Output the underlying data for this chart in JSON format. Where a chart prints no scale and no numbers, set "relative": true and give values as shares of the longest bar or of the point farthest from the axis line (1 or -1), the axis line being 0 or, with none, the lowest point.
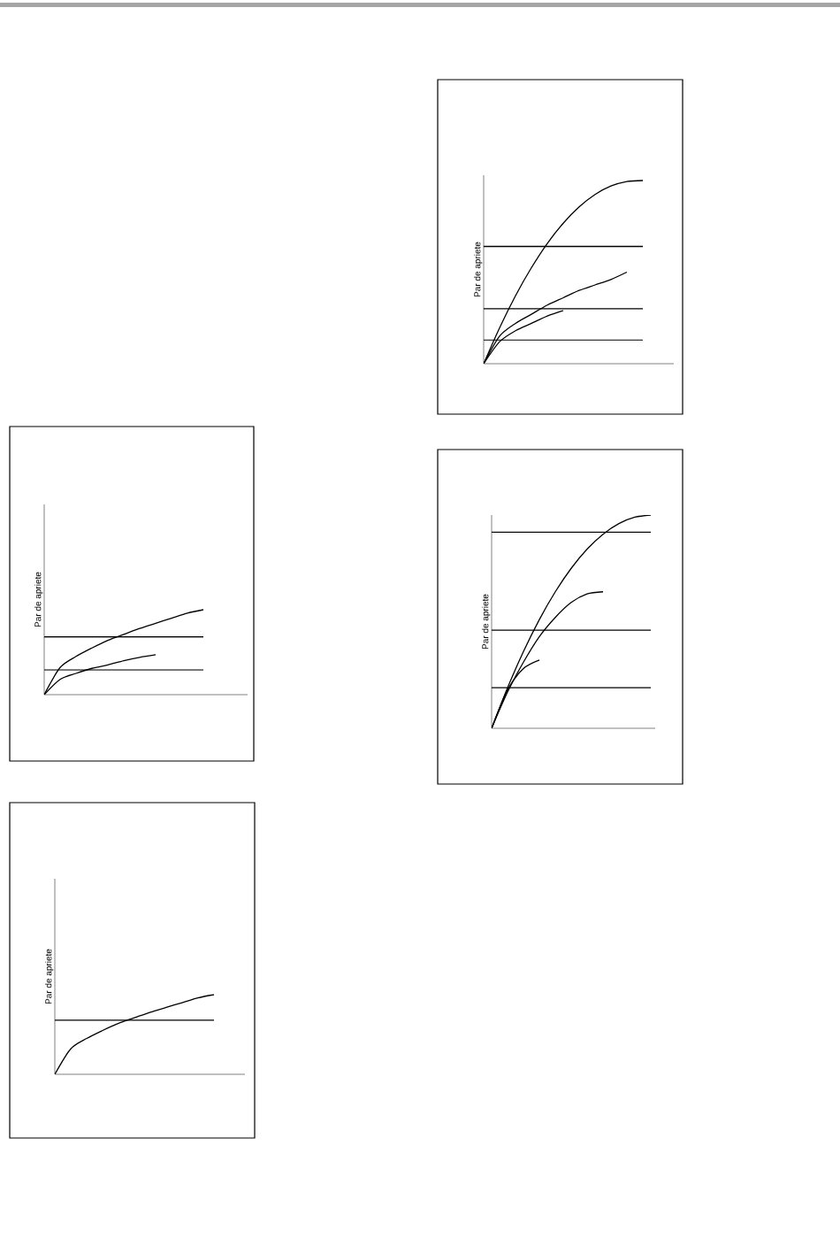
{
  "chart_data": [
    {
      "type": "line",
      "relative": true,
      "marker": "none",
      "ylabel": "Par de apriete",
      "categories": [
        null,
        null,
        null,
        null,
        null,
        null,
        null,
        null,
        null,
        null,
        null
      ],
      "series": [
        {
          "color": "#000000",
          "values": [
            0,
            0.196,
            0.371,
            0.524,
            0.657,
            0.767,
            0.856,
            0.924,
            0.97,
            0.995,
            1.0
          ]
        },
        {
          "color": "#000000",
          "values": [
            0,
            0.15,
            0.22,
            0.27,
            0.32,
            0.36,
            0.4,
            0.43,
            0.46,
            0.5,
            null
          ]
        },
        {
          "color": "#000000",
          "values": [
            0,
            0.12,
            0.18,
            0.22,
            0.26,
            0.29,
            null,
            null,
            null,
            null,
            null
          ]
        },
        {
          "color": "#000000",
          "values": [
            0.64,
            0.64,
            0.64,
            0.64,
            0.64,
            0.64,
            0.64,
            0.64,
            0.64,
            0.64,
            0.64
          ]
        },
        {
          "color": "#000000",
          "values": [
            0.3,
            0.3,
            0.3,
            0.3,
            0.3,
            0.3,
            0.3,
            0.3,
            0.3,
            0.3,
            0.3
          ]
        },
        {
          "color": "#000000",
          "values": [
            0.13,
            0.13,
            0.13,
            0.13,
            0.13,
            0.13,
            0.13,
            0.13,
            0.13,
            0.13,
            0.13
          ]
        }
      ]
    },
    {
      "type": "line",
      "relative": true,
      "marker": "none",
      "ylabel": "Par de apriete",
      "categories": [
        null,
        null,
        null,
        null,
        null,
        null,
        null,
        null,
        null,
        null,
        null
      ],
      "series": [
        {
          "color": "#000000",
          "values": [
            0,
            0.32,
            0.45,
            0.55,
            0.64,
            0.71,
            0.78,
            0.84,
            0.9,
            0.96,
            1.0
          ]
        },
        {
          "color": "#000000",
          "values": [
            0,
            0.18,
            0.25,
            0.31,
            0.35,
            0.4,
            0.44,
            0.47,
            null,
            null,
            null
          ]
        },
        {
          "color": "#000000",
          "values": [
            0.68,
            0.68,
            0.68,
            0.68,
            0.68,
            0.68,
            0.68,
            0.68,
            0.68,
            0.68,
            0.68
          ]
        },
        {
          "color": "#000000",
          "values": [
            0.29,
            0.29,
            0.29,
            0.29,
            0.29,
            0.29,
            0.29,
            0.29,
            0.29,
            0.29,
            0.29
          ]
        }
      ]
    },
    {
      "type": "line",
      "relative": true,
      "marker": "none",
      "ylabel": "Par de apriete",
      "categories": [
        null,
        null,
        null,
        null,
        null,
        null,
        null,
        null,
        null,
        null,
        null
      ],
      "series": [
        {
          "color": "#000000",
          "values": [
            0,
            0.19,
            0.36,
            0.51,
            0.64,
            0.75,
            0.84,
            0.91,
            0.96,
            0.99,
            1.0
          ]
        },
        {
          "color": "#000000",
          "values": [
            0,
            0.17,
            0.31,
            0.43,
            0.52,
            0.59,
            0.63,
            0.64,
            null,
            null,
            null
          ]
        },
        {
          "color": "#000000",
          "values": [
            0,
            0.18,
            0.28,
            0.32,
            null,
            null,
            null,
            null,
            null,
            null,
            null
          ]
        },
        {
          "color": "#000000",
          "values": [
            0.92,
            0.92,
            0.92,
            0.92,
            0.92,
            0.92,
            0.92,
            0.92,
            0.92,
            0.92,
            0.92
          ]
        },
        {
          "color": "#000000",
          "values": [
            0.46,
            0.46,
            0.46,
            0.46,
            0.46,
            0.46,
            0.46,
            0.46,
            0.46,
            0.46,
            0.46
          ]
        },
        {
          "color": "#000000",
          "values": [
            0.19,
            0.19,
            0.19,
            0.19,
            0.19,
            0.19,
            0.19,
            0.19,
            0.19,
            0.19,
            0.19
          ]
        }
      ]
    },
    {
      "type": "line",
      "relative": true,
      "marker": "none",
      "ylabel": "Par de apriete",
      "categories": [
        null,
        null,
        null,
        null,
        null,
        null,
        null,
        null,
        null,
        null,
        null
      ],
      "series": [
        {
          "color": "#000000",
          "values": [
            0,
            0.32,
            0.45,
            0.55,
            0.64,
            0.71,
            0.78,
            0.84,
            0.9,
            0.96,
            1.0
          ]
        },
        {
          "color": "#000000",
          "values": [
            0.68,
            0.68,
            0.68,
            0.68,
            0.68,
            0.68,
            0.68,
            0.68,
            0.68,
            0.68,
            0.68
          ]
        }
      ]
    }
  ]
}
